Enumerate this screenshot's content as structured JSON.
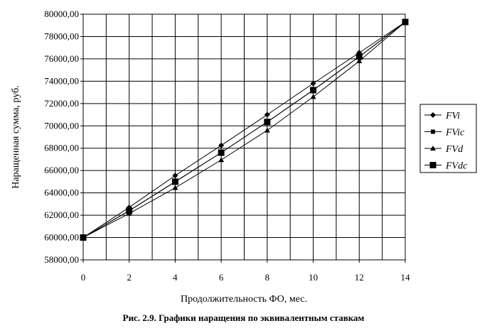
{
  "chart_data": {
    "type": "line",
    "title": "",
    "xlabel": "Продолжительность ФО, мес.",
    "ylabel": "Наращенная сумма, руб.",
    "xlim": [
      0,
      14
    ],
    "ylim": [
      58000,
      80000
    ],
    "x_ticks": [
      "0",
      "2",
      "4",
      "6",
      "8",
      "10",
      "12",
      "14"
    ],
    "y_ticks": [
      "58000,00",
      "60000,00",
      "62000,00",
      "64000,00",
      "66000,00",
      "68000,00",
      "70000,00",
      "72000,00",
      "74000,00",
      "76000,00",
      "78000,00",
      "80000,00"
    ],
    "grid": true,
    "legend_position": "right",
    "x": [
      0,
      2,
      4,
      6,
      8,
      10,
      12,
      14
    ],
    "series": [
      {
        "name": "FVi",
        "marker": "diamond",
        "values": [
          60000,
          62700,
          65550,
          68250,
          71000,
          73800,
          76550,
          79300
        ]
      },
      {
        "name": "FVic",
        "marker": "square",
        "values": [
          60000,
          62400,
          65000,
          67600,
          70350,
          73200,
          76200,
          79300
        ]
      },
      {
        "name": "FVd",
        "marker": "triangle",
        "values": [
          60000,
          62150,
          64450,
          66950,
          69600,
          72600,
          75800,
          79300
        ]
      },
      {
        "name": "FVdc",
        "marker": "square-large",
        "values": [
          60000,
          62400,
          65000,
          67600,
          70350,
          73200,
          76200,
          79300
        ]
      }
    ]
  },
  "caption": "Рис. 2.9. Графики наращения по эквивалентным ставкам"
}
